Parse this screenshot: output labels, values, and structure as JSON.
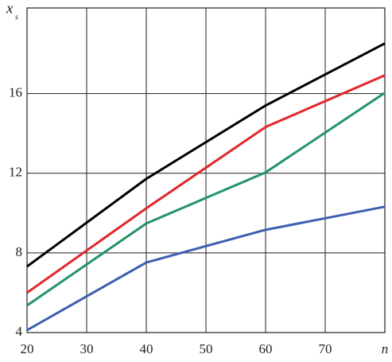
{
  "chart_data": {
    "type": "line",
    "y_label": "x",
    "y_label_sub": "s",
    "x_label": "n",
    "x": [
      20,
      40,
      60,
      80
    ],
    "series": [
      {
        "color": "#000000",
        "values": [
          7.32,
          11.72,
          15.4,
          18.52
        ]
      },
      {
        "color": "#e0262b",
        "values": [
          6.0,
          10.24,
          14.32,
          16.92
        ]
      },
      {
        "color": "#23936a",
        "values": [
          5.36,
          9.48,
          12.04,
          16.04
        ]
      },
      {
        "color": "#3d5fb0",
        "values": [
          4.12,
          7.52,
          9.16,
          10.32
        ]
      }
    ],
    "xlim": [
      20,
      80
    ],
    "ylim": [
      4,
      20.3
    ],
    "xticks": [
      20,
      30,
      40,
      50,
      60,
      70
    ],
    "yticks": [
      4,
      8,
      12,
      16
    ],
    "grid": true
  }
}
